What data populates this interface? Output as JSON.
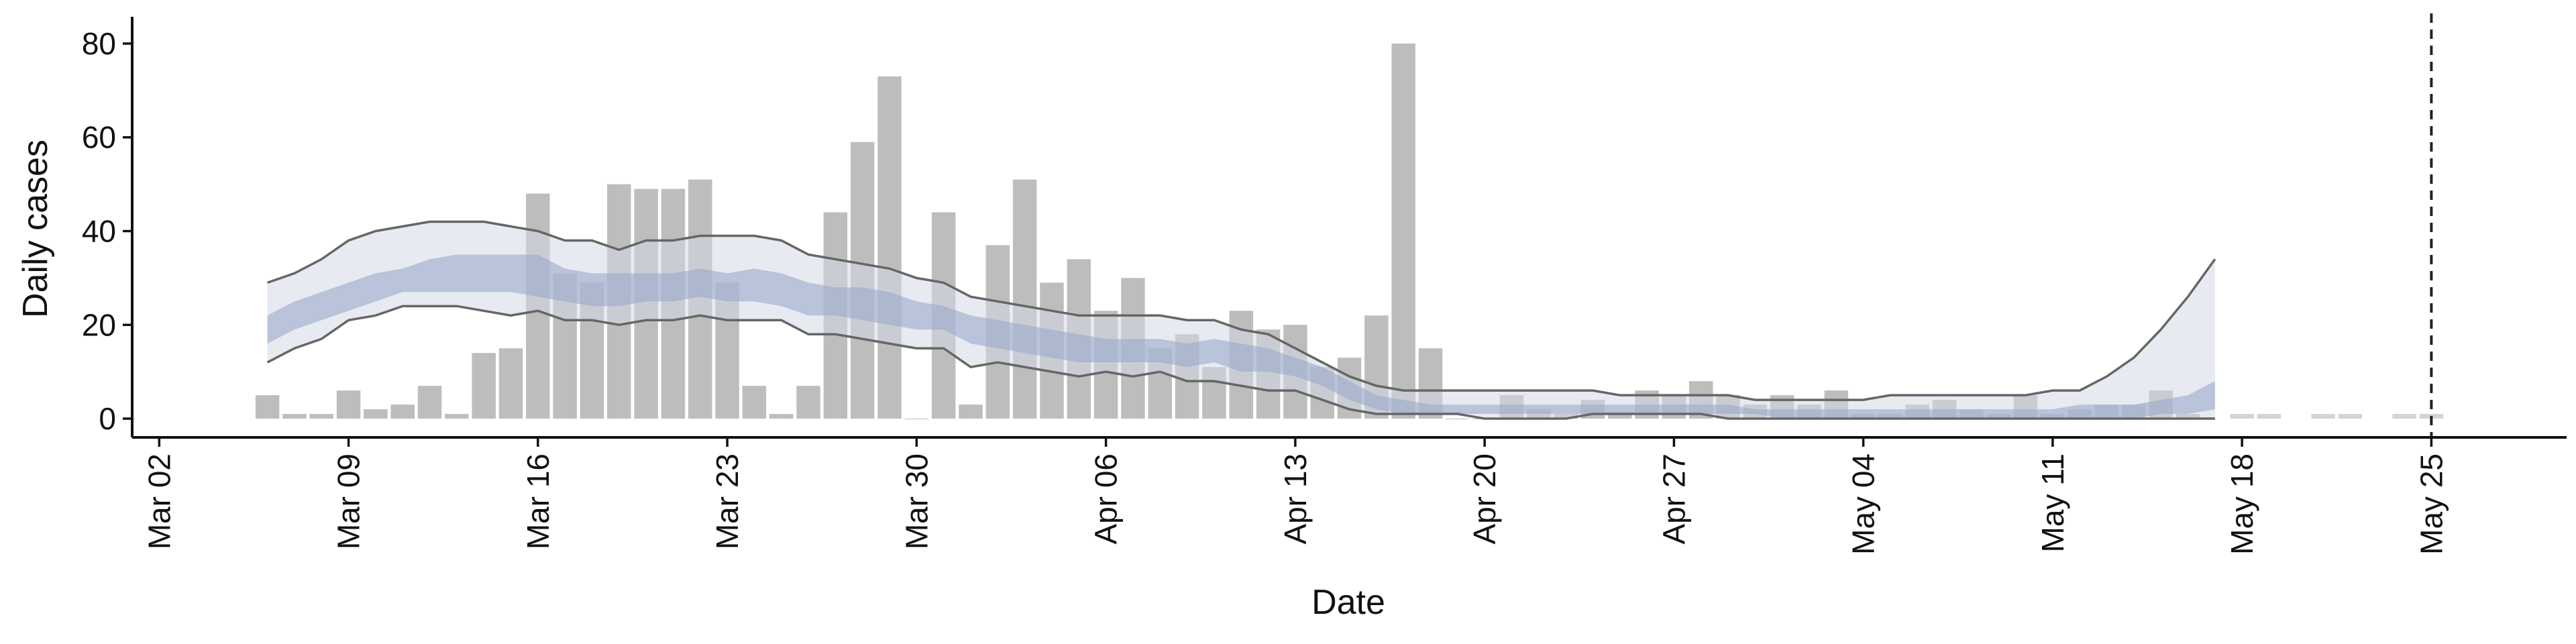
{
  "chart_data": {
    "type": "bar",
    "xlabel": "Date",
    "ylabel": "Daily cases",
    "xlim": [
      "03-01",
      "05-30"
    ],
    "ylim": [
      -4,
      85
    ],
    "yticks": [
      0,
      20,
      40,
      60,
      80
    ],
    "xticks": [
      {
        "value": "03-02",
        "label": "Mar 02"
      },
      {
        "value": "03-09",
        "label": "Mar 09"
      },
      {
        "value": "03-16",
        "label": "Mar 16"
      },
      {
        "value": "03-23",
        "label": "Mar 23"
      },
      {
        "value": "03-30",
        "label": "Mar 30"
      },
      {
        "value": "04-06",
        "label": "Apr 06"
      },
      {
        "value": "04-13",
        "label": "Apr 13"
      },
      {
        "value": "04-20",
        "label": "Apr 20"
      },
      {
        "value": "04-27",
        "label": "Apr 27"
      },
      {
        "value": "05-04",
        "label": "May 04"
      },
      {
        "value": "05-11",
        "label": "May 11"
      },
      {
        "value": "05-18",
        "label": "May 18"
      },
      {
        "value": "05-25",
        "label": "May 25"
      }
    ],
    "vline": {
      "x": "05-25",
      "color": "#222222"
    },
    "bars": [
      {
        "color": "#bdbdbd",
        "x": [
          "03-06",
          "03-07",
          "03-08",
          "03-09",
          "03-10",
          "03-11",
          "03-12",
          "03-13",
          "03-14",
          "03-15",
          "03-16",
          "03-17",
          "03-18",
          "03-19",
          "03-20",
          "03-21",
          "03-22",
          "03-23",
          "03-24",
          "03-25",
          "03-26",
          "03-27",
          "03-28",
          "03-29",
          "03-30",
          "03-31",
          "04-01",
          "04-02",
          "04-03",
          "04-04",
          "04-05",
          "04-06",
          "04-07",
          "04-08",
          "04-09",
          "04-10",
          "04-11",
          "04-12",
          "04-13",
          "04-14",
          "04-15",
          "04-16",
          "04-17",
          "04-18",
          "04-19",
          "04-20",
          "04-21",
          "04-22",
          "04-23",
          "04-24",
          "04-25",
          "04-26",
          "04-27",
          "04-28",
          "04-29",
          "04-30",
          "05-01",
          "05-02",
          "05-03",
          "05-04",
          "05-05",
          "05-06",
          "05-07",
          "05-08",
          "05-09",
          "05-10",
          "05-11",
          "05-12",
          "05-13",
          "05-14",
          "05-15",
          "05-16"
        ],
        "values": [
          5,
          1,
          1,
          6,
          2,
          3,
          7,
          1,
          14,
          15,
          48,
          31,
          29,
          50,
          49,
          49,
          51,
          29,
          7,
          1,
          7,
          44,
          59,
          73,
          0,
          44,
          3,
          37,
          51,
          29,
          34,
          23,
          30,
          15,
          18,
          11,
          23,
          19,
          20,
          11,
          13,
          22,
          80,
          15,
          0,
          0,
          5,
          2,
          1,
          4,
          1,
          6,
          5,
          8,
          5,
          3,
          5,
          3,
          6,
          1,
          1,
          3,
          4,
          2,
          1,
          5,
          1,
          2,
          3,
          3,
          6,
          1
        ]
      },
      {
        "color": "#d4d4d4",
        "x": [
          "05-18",
          "05-19",
          "05-21",
          "05-22",
          "05-24",
          "05-25"
        ],
        "values": [
          1,
          1,
          1,
          1,
          1,
          1
        ]
      }
    ],
    "bands": {
      "x": [
        "03-06",
        "03-07",
        "03-08",
        "03-09",
        "03-10",
        "03-11",
        "03-12",
        "03-13",
        "03-14",
        "03-15",
        "03-16",
        "03-17",
        "03-18",
        "03-19",
        "03-20",
        "03-21",
        "03-22",
        "03-23",
        "03-24",
        "03-25",
        "03-26",
        "03-27",
        "03-28",
        "03-29",
        "03-30",
        "03-31",
        "04-01",
        "04-02",
        "04-03",
        "04-04",
        "04-05",
        "04-06",
        "04-07",
        "04-08",
        "04-09",
        "04-10",
        "04-11",
        "04-12",
        "04-13",
        "04-14",
        "04-15",
        "04-16",
        "04-17",
        "04-18",
        "04-19",
        "04-20",
        "04-21",
        "04-22",
        "04-23",
        "04-24",
        "04-25",
        "04-26",
        "04-27",
        "04-28",
        "04-29",
        "04-30",
        "05-01",
        "05-02",
        "05-03",
        "05-04",
        "05-05",
        "05-06",
        "05-07",
        "05-08",
        "05-09",
        "05-10",
        "05-11",
        "05-12",
        "05-13",
        "05-14",
        "05-15",
        "05-16",
        "05-17"
      ],
      "line_color": "#666666",
      "outer": {
        "color": "#d5d9e8",
        "lower": [
          12,
          15,
          17,
          21,
          22,
          24,
          24,
          24,
          23,
          22,
          23,
          21,
          21,
          20,
          21,
          21,
          22,
          21,
          21,
          21,
          18,
          18,
          17,
          16,
          15,
          15,
          11,
          12,
          11,
          10,
          9,
          10,
          9,
          10,
          8,
          8,
          7,
          6,
          6,
          4,
          2,
          1,
          1,
          1,
          1,
          0,
          0,
          0,
          0,
          1,
          1,
          1,
          1,
          1,
          0,
          0,
          0,
          0,
          0,
          0,
          0,
          0,
          0,
          0,
          0,
          0,
          0,
          0,
          0,
          0,
          0,
          0,
          0
        ],
        "upper": [
          29,
          31,
          34,
          38,
          40,
          41,
          42,
          42,
          42,
          41,
          40,
          38,
          38,
          36,
          38,
          38,
          39,
          39,
          39,
          38,
          35,
          34,
          33,
          32,
          30,
          29,
          26,
          25,
          24,
          23,
          22,
          22,
          22,
          22,
          21,
          21,
          19,
          18,
          15,
          12,
          9,
          7,
          6,
          6,
          6,
          6,
          6,
          6,
          6,
          6,
          5,
          5,
          5,
          5,
          5,
          4,
          4,
          4,
          4,
          4,
          5,
          5,
          5,
          5,
          5,
          5,
          6,
          6,
          9,
          13,
          19,
          26,
          34
        ]
      },
      "inner": {
        "color": "#9aa8c8",
        "lower": [
          16,
          19,
          21,
          23,
          25,
          27,
          27,
          27,
          27,
          27,
          26,
          25,
          24,
          24,
          25,
          25,
          26,
          25,
          25,
          24,
          22,
          22,
          21,
          20,
          19,
          19,
          16,
          15,
          14,
          13,
          12,
          12,
          12,
          12,
          11,
          12,
          10,
          10,
          9,
          7,
          4,
          2,
          1,
          1,
          1,
          1,
          1,
          1,
          1,
          1,
          1,
          1,
          1,
          1,
          1,
          1,
          0,
          0,
          0,
          0,
          0,
          0,
          0,
          0,
          0,
          0,
          0,
          0,
          0,
          0,
          1,
          1,
          2
        ],
        "upper": [
          22,
          25,
          27,
          29,
          31,
          32,
          34,
          35,
          35,
          35,
          35,
          32,
          31,
          31,
          31,
          31,
          32,
          31,
          32,
          31,
          29,
          28,
          28,
          27,
          25,
          24,
          22,
          21,
          20,
          19,
          18,
          17,
          17,
          17,
          16,
          17,
          16,
          15,
          13,
          11,
          8,
          5,
          4,
          3,
          3,
          3,
          3,
          3,
          3,
          3,
          3,
          3,
          3,
          3,
          3,
          2,
          2,
          2,
          2,
          2,
          2,
          2,
          2,
          2,
          2,
          2,
          2,
          3,
          3,
          3,
          4,
          5,
          8
        ]
      }
    }
  }
}
